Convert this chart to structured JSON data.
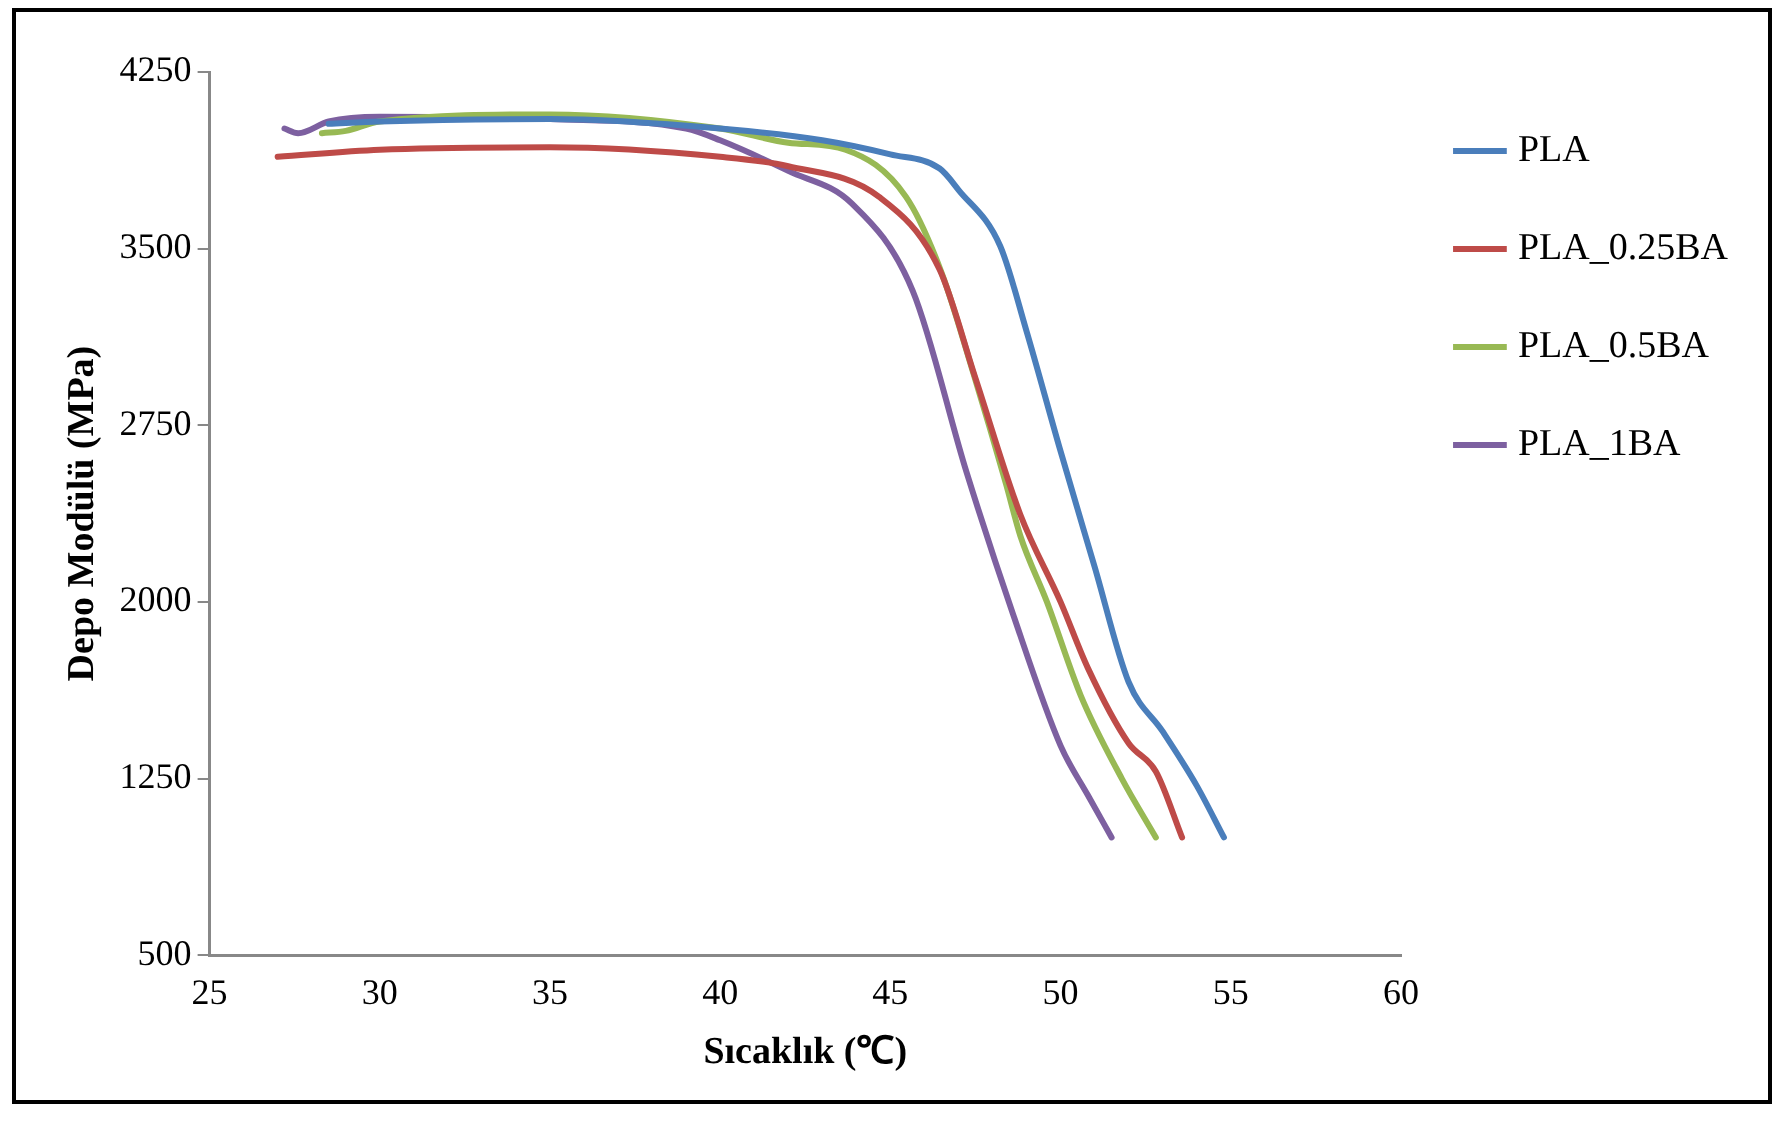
{
  "chart_data": {
    "type": "line",
    "xlabel": "Sıcaklık (℃)",
    "ylabel": "Depo Modülü (MPa)",
    "xlim": [
      25,
      60
    ],
    "xticks": [
      25,
      30,
      35,
      40,
      45,
      50,
      55,
      60
    ],
    "ylim": [
      500,
      4250
    ],
    "yticks": [
      500,
      1250,
      2000,
      2750,
      3500,
      4250
    ],
    "grid": false,
    "legend": "right",
    "marker": "none",
    "line_style": "solid",
    "series": [
      {
        "name": "PLA",
        "color": "#4a7ebb",
        "x": [
          28.5,
          30,
          35,
          40,
          43,
          45,
          46.45,
          47,
          48.23,
          49,
          50,
          51,
          52,
          53,
          54,
          54.8
        ],
        "values": [
          4030,
          4040,
          4050,
          4010,
          3960,
          3900,
          3840,
          3750,
          3510,
          3150,
          2640,
          2150,
          1660,
          1450,
          1220,
          1000
        ]
      },
      {
        "name": "PLA_0.25BA",
        "color": "#be4b48",
        "x": [
          27,
          30,
          35,
          40,
          42,
          44.67,
          46.45,
          47.5,
          48.82,
          50,
          50.8,
          52,
          52.8,
          53.57
        ],
        "values": [
          3890,
          3920,
          3930,
          3890,
          3850,
          3720,
          3410,
          2950,
          2370,
          2000,
          1720,
          1400,
          1280,
          1000
        ]
      },
      {
        "name": "PLA_0.5BA",
        "color": "#98b954",
        "x": [
          28.3,
          29,
          30,
          35,
          40,
          42,
          43.68,
          45.46,
          46.5,
          47.44,
          48.4,
          48.82,
          49.6,
          50.6,
          51.8,
          52.8
        ],
        "values": [
          3990,
          4000,
          4040,
          4070,
          4010,
          3950,
          3920,
          3720,
          3400,
          2970,
          2500,
          2280,
          2000,
          1600,
          1250,
          1000
        ]
      },
      {
        "name": "PLA_1BA",
        "color": "#7d60a0",
        "x": [
          27.2,
          27.6,
          28.5,
          30,
          35,
          39,
          40,
          42,
          43.88,
          45.66,
          47.24,
          48.6,
          50,
          50.8,
          51.5
        ],
        "values": [
          4010,
          3990,
          4040,
          4060,
          4050,
          4010,
          3960,
          3830,
          3690,
          3320,
          2550,
          1950,
          1390,
          1180,
          1000
        ]
      }
    ]
  }
}
